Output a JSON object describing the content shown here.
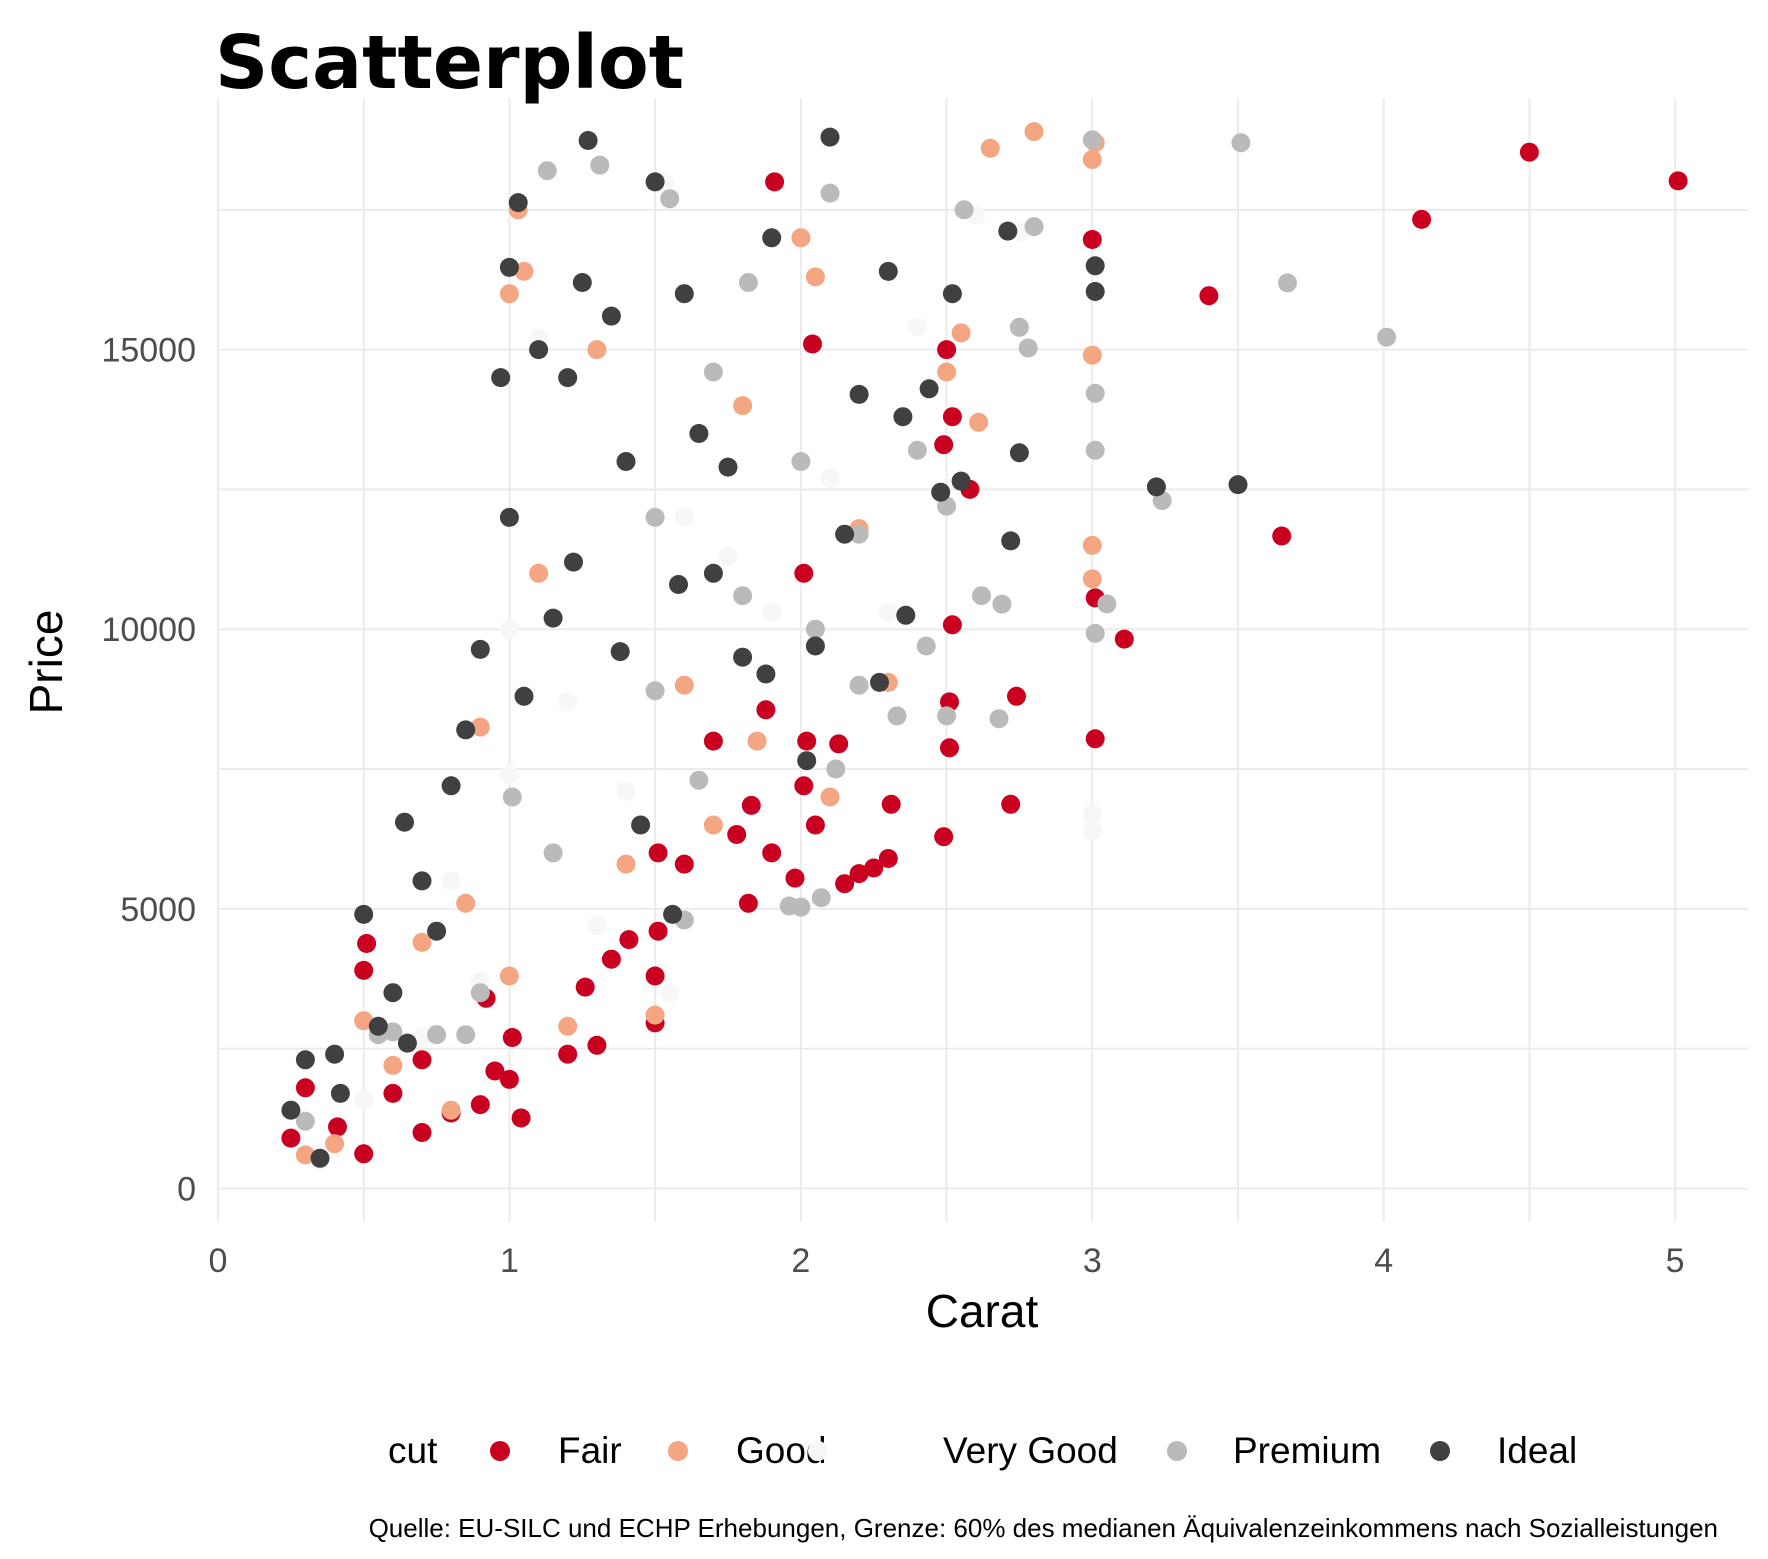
{
  "chart_data": {
    "type": "scatter",
    "title": "Scatterplot",
    "xlabel": "Carat",
    "ylabel": "Price",
    "xlim": [
      0,
      5.25
    ],
    "ylim": [
      -600,
      19500
    ],
    "x_ticks": [
      0,
      1,
      2,
      3,
      4,
      5
    ],
    "x_tick_labels": [
      "0",
      "1",
      "2",
      "3",
      "4",
      "5"
    ],
    "y_ticks": [
      0,
      5000,
      10000,
      15000
    ],
    "y_tick_labels": [
      "0",
      "5000",
      "10000",
      "15000"
    ],
    "grid": true,
    "legend": {
      "title": "cut",
      "position": "bottom",
      "entries": [
        {
          "name": "Fair",
          "color": "#ca0020"
        },
        {
          "name": "Good",
          "color": "#f4a582"
        },
        {
          "name": "Very Good",
          "color": "#f7f7f7"
        },
        {
          "name": "Premium",
          "color": "#bababa"
        },
        {
          "name": "Ideal",
          "color": "#404040"
        }
      ]
    },
    "caption": "Quelle: EU-SILC und ECHP Erhebungen, Grenze: 60% des medianen Äquivalenzeinkommens nach Sozialleistungen",
    "series": [
      {
        "name": "Fair",
        "color": "#ca0020",
        "points": [
          [
            5.01,
            18018
          ],
          [
            4.5,
            18531
          ],
          [
            4.13,
            17329
          ],
          [
            3.4,
            15964
          ],
          [
            3.65,
            11668
          ],
          [
            3.11,
            9823
          ],
          [
            3.01,
            10560
          ],
          [
            3.0,
            16970
          ],
          [
            3.01,
            8040
          ],
          [
            2.72,
            6870
          ],
          [
            2.74,
            8800
          ],
          [
            2.49,
            6290
          ],
          [
            2.51,
            7880
          ],
          [
            2.51,
            8700
          ],
          [
            2.52,
            10080
          ],
          [
            2.49,
            13300
          ],
          [
            2.52,
            13800
          ],
          [
            2.58,
            12500
          ],
          [
            2.31,
            6870
          ],
          [
            2.25,
            5730
          ],
          [
            2.2,
            5630
          ],
          [
            2.15,
            5450
          ],
          [
            2.13,
            7950
          ],
          [
            2.05,
            6500
          ],
          [
            1.98,
            5550
          ],
          [
            1.82,
            5100
          ],
          [
            1.78,
            6330
          ],
          [
            1.83,
            6850
          ],
          [
            1.88,
            8560
          ],
          [
            1.91,
            18000
          ],
          [
            1.5,
            2960
          ],
          [
            1.5,
            3800
          ],
          [
            1.51,
            4600
          ],
          [
            1.41,
            4450
          ],
          [
            1.35,
            4100
          ],
          [
            1.3,
            2560
          ],
          [
            1.26,
            3600
          ],
          [
            1.2,
            2400
          ],
          [
            1.04,
            1260
          ],
          [
            1.0,
            1950
          ],
          [
            0.95,
            2100
          ],
          [
            0.92,
            3400
          ],
          [
            0.9,
            1500
          ],
          [
            0.8,
            1350
          ],
          [
            0.7,
            1000
          ],
          [
            0.7,
            2300
          ],
          [
            0.6,
            1700
          ],
          [
            0.5,
            620
          ],
          [
            0.51,
            4380
          ],
          [
            0.5,
            3900
          ],
          [
            0.3,
            1800
          ],
          [
            0.25,
            900
          ],
          [
            0.41,
            1100
          ],
          [
            1.01,
            2700
          ],
          [
            1.51,
            6000
          ],
          [
            1.7,
            8000
          ],
          [
            2.01,
            7200
          ],
          [
            2.02,
            8000
          ],
          [
            2.01,
            11000
          ],
          [
            2.04,
            15100
          ],
          [
            2.5,
            15000
          ],
          [
            2.3,
            5900
          ],
          [
            1.9,
            6000
          ],
          [
            1.6,
            5800
          ]
        ]
      },
      {
        "name": "Good",
        "color": "#f4a582",
        "points": [
          [
            2.8,
            18900
          ],
          [
            3.0,
            18400
          ],
          [
            3.01,
            18700
          ],
          [
            3.0,
            14900
          ],
          [
            3.0,
            11500
          ],
          [
            3.0,
            10900
          ],
          [
            2.61,
            13700
          ],
          [
            2.55,
            15300
          ],
          [
            2.3,
            9050
          ],
          [
            2.0,
            17000
          ],
          [
            1.03,
            17500
          ],
          [
            1.0,
            16000
          ],
          [
            0.9,
            8250
          ],
          [
            0.7,
            4400
          ],
          [
            0.5,
            3000
          ],
          [
            0.3,
            600
          ],
          [
            0.4,
            800
          ],
          [
            0.8,
            1400
          ],
          [
            1.2,
            2900
          ],
          [
            1.5,
            3100
          ],
          [
            1.7,
            6500
          ],
          [
            1.85,
            8000
          ],
          [
            2.1,
            7000
          ],
          [
            1.3,
            15000
          ],
          [
            1.1,
            11000
          ],
          [
            1.6,
            9000
          ],
          [
            2.2,
            11800
          ],
          [
            2.5,
            14600
          ],
          [
            2.65,
            18600
          ],
          [
            1.8,
            14000
          ],
          [
            0.6,
            2200
          ],
          [
            1.0,
            3800
          ],
          [
            1.4,
            5800
          ],
          [
            0.85,
            5100
          ],
          [
            1.05,
            16400
          ],
          [
            2.05,
            16300
          ]
        ]
      },
      {
        "name": "Very Good",
        "color": "#f7f7f7",
        "points": [
          [
            3.0,
            6400
          ],
          [
            3.0,
            6700
          ],
          [
            1.53,
            18000
          ],
          [
            1.0,
            10000
          ],
          [
            0.7,
            2700
          ],
          [
            0.9,
            3700
          ],
          [
            1.2,
            8700
          ],
          [
            1.6,
            12000
          ],
          [
            2.1,
            12700
          ],
          [
            2.4,
            15400
          ],
          [
            0.35,
            500
          ],
          [
            0.5,
            1600
          ],
          [
            0.8,
            5500
          ],
          [
            1.4,
            7100
          ],
          [
            1.9,
            10300
          ],
          [
            2.6,
            17400
          ],
          [
            1.75,
            11300
          ],
          [
            0.6,
            2800
          ],
          [
            1.3,
            4700
          ],
          [
            2.3,
            10300
          ],
          [
            1.1,
            15200
          ],
          [
            2.75,
            17100
          ],
          [
            1.0,
            7400
          ],
          [
            1.55,
            3500
          ]
        ]
      },
      {
        "name": "Premium",
        "color": "#bababa",
        "points": [
          [
            3.51,
            18701
          ],
          [
            4.01,
            15223
          ],
          [
            3.67,
            16193
          ],
          [
            3.24,
            12300
          ],
          [
            3.05,
            10453
          ],
          [
            3.01,
            9925
          ],
          [
            3.01,
            13200
          ],
          [
            3.01,
            14220
          ],
          [
            3.0,
            18750
          ],
          [
            2.78,
            15030
          ],
          [
            2.75,
            15400
          ],
          [
            2.62,
            10600
          ],
          [
            2.69,
            10450
          ],
          [
            2.43,
            9700
          ],
          [
            2.33,
            8450
          ],
          [
            2.5,
            8450
          ],
          [
            2.68,
            8400
          ],
          [
            1.96,
            5050
          ],
          [
            2.0,
            5030
          ],
          [
            2.07,
            5200
          ],
          [
            1.31,
            18300
          ],
          [
            1.13,
            18200
          ],
          [
            1.5,
            8900
          ],
          [
            1.5,
            12000
          ],
          [
            1.7,
            14600
          ],
          [
            1.82,
            16200
          ],
          [
            2.2,
            9000
          ],
          [
            2.2,
            11700
          ],
          [
            2.4,
            13200
          ],
          [
            2.56,
            17500
          ],
          [
            0.9,
            3500
          ],
          [
            0.6,
            2800
          ],
          [
            0.3,
            1200
          ],
          [
            1.8,
            10600
          ],
          [
            1.65,
            7300
          ],
          [
            2.05,
            10000
          ],
          [
            2.12,
            7500
          ],
          [
            0.55,
            2750
          ],
          [
            0.75,
            2750
          ],
          [
            0.85,
            2750
          ],
          [
            1.01,
            7000
          ],
          [
            1.15,
            6000
          ],
          [
            1.6,
            4800
          ],
          [
            2.0,
            13000
          ],
          [
            2.1,
            17800
          ],
          [
            2.5,
            12200
          ],
          [
            2.8,
            17200
          ],
          [
            1.55,
            17700
          ]
        ]
      },
      {
        "name": "Ideal",
        "color": "#404040",
        "points": [
          [
            3.5,
            12587
          ],
          [
            3.22,
            12545
          ],
          [
            2.75,
            13156
          ],
          [
            2.72,
            11580
          ],
          [
            2.48,
            12450
          ],
          [
            3.01,
            16040
          ],
          [
            3.01,
            16500
          ],
          [
            2.71,
            17120
          ],
          [
            2.55,
            12650
          ],
          [
            2.36,
            10250
          ],
          [
            2.27,
            9050
          ],
          [
            2.02,
            7650
          ],
          [
            1.56,
            4900
          ],
          [
            1.0,
            16470
          ],
          [
            1.03,
            17630
          ],
          [
            1.27,
            18740
          ],
          [
            0.9,
            9640
          ],
          [
            0.64,
            6550
          ],
          [
            0.5,
            4900
          ],
          [
            0.7,
            5500
          ],
          [
            0.8,
            7200
          ],
          [
            1.0,
            12000
          ],
          [
            1.2,
            14500
          ],
          [
            1.4,
            13000
          ],
          [
            1.5,
            18000
          ],
          [
            1.6,
            16000
          ],
          [
            1.7,
            11000
          ],
          [
            1.8,
            9500
          ],
          [
            2.1,
            18800
          ],
          [
            2.3,
            16400
          ],
          [
            2.52,
            16000
          ],
          [
            0.35,
            540
          ],
          [
            0.3,
            2300
          ],
          [
            0.4,
            2400
          ],
          [
            0.6,
            3500
          ],
          [
            0.75,
            4600
          ],
          [
            1.1,
            15000
          ],
          [
            1.25,
            16200
          ],
          [
            1.35,
            15600
          ],
          [
            0.97,
            14500
          ],
          [
            1.88,
            9200
          ],
          [
            2.05,
            9700
          ],
          [
            2.2,
            14200
          ],
          [
            2.44,
            14300
          ],
          [
            1.15,
            10200
          ],
          [
            1.45,
            6500
          ],
          [
            1.65,
            13500
          ],
          [
            1.9,
            17000
          ],
          [
            0.55,
            2900
          ],
          [
            0.85,
            8200
          ],
          [
            1.05,
            8800
          ],
          [
            1.22,
            11200
          ],
          [
            1.38,
            9600
          ],
          [
            1.58,
            10800
          ],
          [
            1.75,
            12900
          ],
          [
            2.15,
            11700
          ],
          [
            2.35,
            13800
          ],
          [
            0.25,
            1400
          ],
          [
            0.42,
            1700
          ],
          [
            0.65,
            2600
          ]
        ]
      }
    ]
  }
}
